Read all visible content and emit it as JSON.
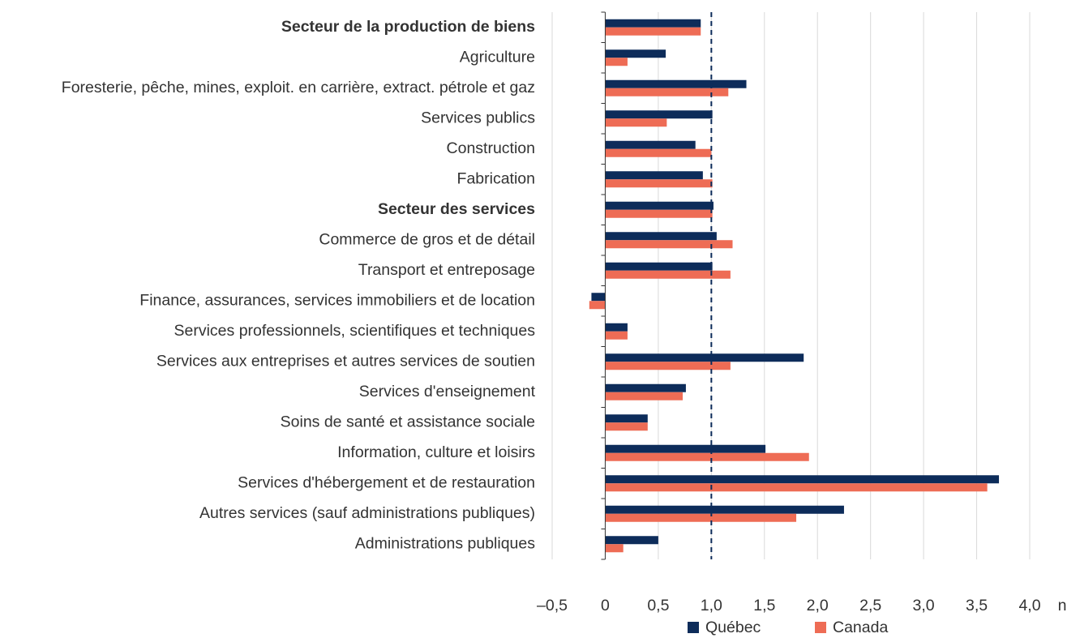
{
  "chart_data": {
    "type": "bar",
    "orientation": "horizontal",
    "categories": [
      "Secteur de la production de biens",
      "Agriculture",
      "Foresterie, pêche, mines, exploit. en carrière, extract. pétrole et gaz",
      "Services publics",
      "Construction",
      "Fabrication",
      "Secteur des services",
      "Commerce de gros et de détail",
      "Transport et entreposage",
      "Finance, assurances, services immobiliers et de location",
      "Services professionnels, scientifiques et techniques",
      "Services aux entreprises et autres services de soutien",
      "Services d'enseignement",
      "Soins de santé et assistance sociale",
      "Information, culture et loisirs",
      "Services d'hébergement et de restauration",
      "Autres services (sauf administrations publiques)",
      "Administrations publiques"
    ],
    "emphasized": [
      0,
      6
    ],
    "series": [
      {
        "name": "Québec",
        "color": "#0d2c5a",
        "values": [
          0.9,
          0.57,
          1.33,
          1.01,
          0.85,
          0.92,
          1.02,
          1.05,
          1.01,
          -0.13,
          0.21,
          1.87,
          0.76,
          0.4,
          1.51,
          3.71,
          2.25,
          0.5
        ]
      },
      {
        "name": "Canada",
        "color": "#ee6c55",
        "values": [
          0.9,
          0.21,
          1.16,
          0.58,
          1.0,
          1.01,
          1.01,
          1.2,
          1.18,
          -0.15,
          0.21,
          1.18,
          0.73,
          0.4,
          1.92,
          3.6,
          1.8,
          0.17
        ]
      }
    ],
    "x_label": "n",
    "xlim": [
      -0.5,
      4.0
    ],
    "xticks": [
      {
        "value": -0.5,
        "label": "–0,5"
      },
      0,
      {
        "value": 0.5,
        "label": "0,5"
      },
      {
        "value": 1.0,
        "label": "1,0"
      },
      {
        "value": 1.5,
        "label": "1,5"
      },
      {
        "value": 2.0,
        "label": "2,0"
      },
      {
        "value": 2.5,
        "label": "2,5"
      },
      {
        "value": 3.0,
        "label": "3,0"
      },
      {
        "value": 3.5,
        "label": "3,5"
      },
      {
        "value": 4.0,
        "label": "4,0"
      }
    ],
    "reference_line": 1.0,
    "grid": true,
    "legend": "bottom"
  }
}
